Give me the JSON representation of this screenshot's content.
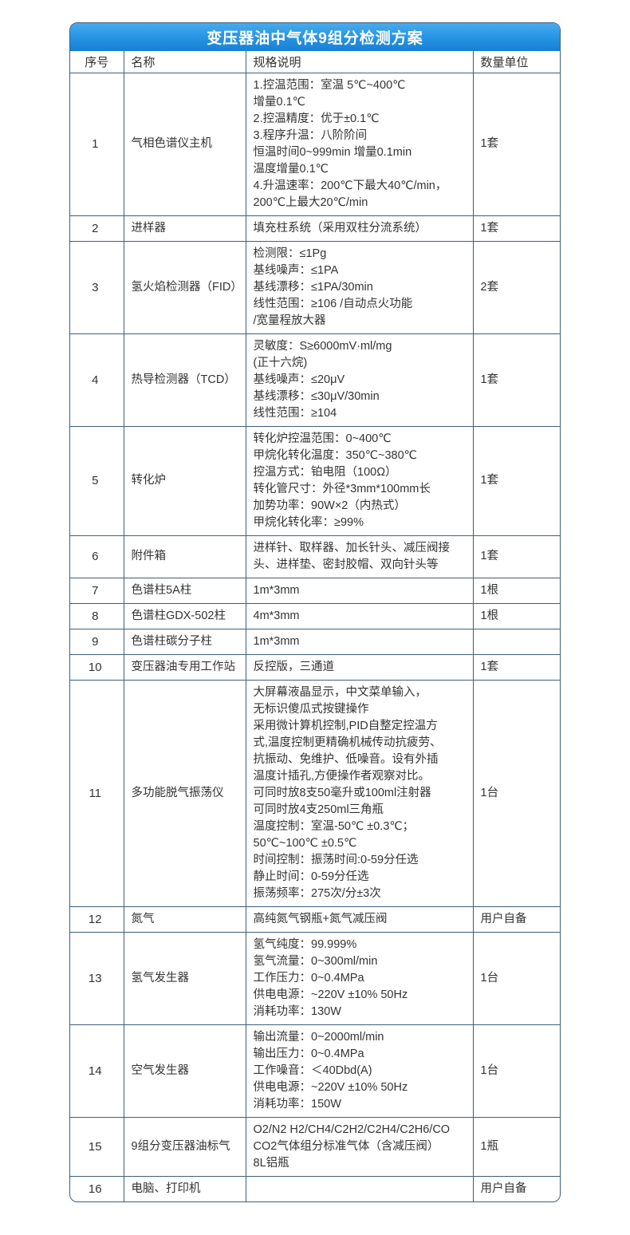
{
  "title": "变压器油中气体9组分检测方案",
  "colors": {
    "title_gradient_top": "#47acef",
    "title_gradient_bottom": "#1680d2",
    "border": "#3f5e7e",
    "text": "#333333",
    "background": "#ffffff"
  },
  "table": {
    "headers": [
      "序号",
      "名称",
      "规格说明",
      "数量单位"
    ],
    "rows": [
      {
        "no": "1",
        "name": "气相色谱仪主机",
        "spec": "1.控温范围：室温 5℃~400℃\n增量0.1℃\n2.控温精度：优于±0.1℃\n3.程序升温：八阶阶间\n恒温时间0~999min 增量0.1min\n温度增量0.1℃\n4.升温速率：200℃下最大40℃/min，\n200℃上最大20℃/min",
        "qty": "1套"
      },
      {
        "no": "2",
        "name": "进样器",
        "spec": "填充柱系统（采用双柱分流系统）",
        "qty": "1套"
      },
      {
        "no": "3",
        "name": "氢火焰检测器（FID）",
        "spec": "检测限：≤1Pg\n基线噪声：≤1PA\n基线漂移：≤1PA/30min\n线性范围：≥106 /自动点火功能\n/宽量程放大器",
        "qty": "2套"
      },
      {
        "no": "4",
        "name": "热导检测器（TCD）",
        "spec": "灵敏度：S≥6000mV·ml/mg\n(正十六烷)\n基线噪声：≤20μV\n基线漂移：≤30μV/30min\n线性范围：≥104",
        "qty": "1套"
      },
      {
        "no": "5",
        "name": "转化炉",
        "spec": "转化炉控温范围：0~400℃\n甲烷化转化温度：350℃~380℃\n控温方式：铂电阻（100Ω）\n转化管尺寸：外径*3mm*100mm长\n加势功率：90W×2（内热式）\n甲烷化转化率：≥99%",
        "qty": "1套"
      },
      {
        "no": "6",
        "name": "附件箱",
        "spec": "进样针、取样器、加长针头、减压阀接头、进样垫、密封胶帽、双向针头等",
        "qty": "1套"
      },
      {
        "no": "7",
        "name": "色谱柱5A柱",
        "spec": "1m*3mm",
        "qty": "1根"
      },
      {
        "no": "8",
        "name": "色谱柱GDX-502柱",
        "spec": "4m*3mm",
        "qty": "1根"
      },
      {
        "no": "9",
        "name": "色谱柱碳分子柱",
        "spec": "1m*3mm",
        "qty": ""
      },
      {
        "no": "10",
        "name": "变压器油专用工作站",
        "spec": "反控版，三通道",
        "qty": "1套"
      },
      {
        "no": "11",
        "name": "多功能脱气振荡仪",
        "spec": "大屏幕液晶显示，中文菜单输入，\n无标识傻瓜式按键操作\n采用微计算机控制,PID自整定控温方\n式,温度控制更精确机械传动抗疲劳、\n抗振动、免维护、低噪音。设有外插\n温度计插孔,方便操作者观察对比。\n可同时放8支50毫升或100ml注射器\n可同时放4支250ml三角瓶\n温度控制：室温-50℃ ±0.3℃；\n 50℃~100℃ ±0.5℃\n时间控制：振荡时间:0-59分任选\n静止时间：0-59分任选\n振荡频率：275次/分±3次",
        "qty": "1台"
      },
      {
        "no": "12",
        "name": "氮气",
        "spec": "高纯氮气钢瓶+氮气减压阀",
        "qty": "用户自备"
      },
      {
        "no": "13",
        "name": "氢气发生器",
        "spec": "氢气纯度：99.999%\n氢气流量：0~300ml/min\n工作压力：0~0.4MPa\n供电电源：~220V ±10% 50Hz\n消耗功率：130W",
        "qty": "1台"
      },
      {
        "no": "14",
        "name": "空气发生器",
        "spec": "输出流量：0~2000ml/min\n输出压力：0~0.4MPa\n工作噪音：＜40Dbd(A)\n供电电源：~220V ±10% 50Hz\n消耗功率：150W",
        "qty": "1台"
      },
      {
        "no": "15",
        "name": "9组分变压器油标气",
        "spec": "O2/N2 H2/CH4/C2H2/C2H4/C2H6/CO\nCO2气体组分标准气体（含减压阀）\n8L铝瓶",
        "qty": "1瓶"
      },
      {
        "no": "16",
        "name": "电脑、打印机",
        "spec": "",
        "qty": "用户自备"
      }
    ]
  }
}
